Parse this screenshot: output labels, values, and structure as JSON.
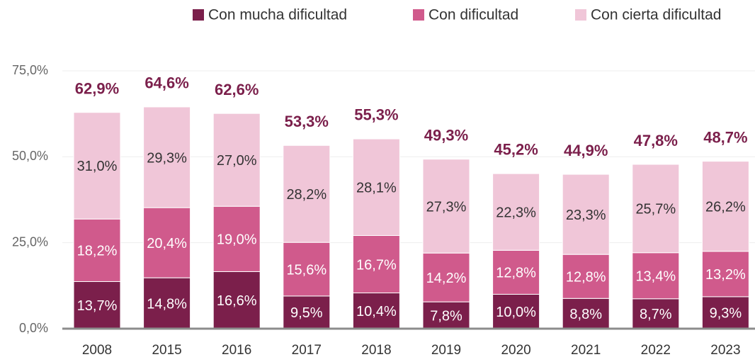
{
  "chart_data": {
    "type": "bar",
    "stacked": true,
    "categories": [
      "2008",
      "2015",
      "2016",
      "2017",
      "2018",
      "2019",
      "2020",
      "2021",
      "2022",
      "2023"
    ],
    "series": [
      {
        "name": "Con mucha dificultad",
        "color": "#7b1f4b",
        "values": [
          13.7,
          14.8,
          16.6,
          9.5,
          10.4,
          7.8,
          10.0,
          8.8,
          8.7,
          9.3
        ],
        "value_labels": [
          "13,7%",
          "14,8%",
          "16,6%",
          "9,5%",
          "10,4%",
          "7,8%",
          "10,0%",
          "8,8%",
          "8,7%",
          "9,3%"
        ]
      },
      {
        "name": "Con dificultad",
        "color": "#d05a8c",
        "values": [
          18.2,
          20.4,
          19.0,
          15.6,
          16.7,
          14.2,
          12.8,
          12.8,
          13.4,
          13.2
        ],
        "value_labels": [
          "18,2%",
          "20,4%",
          "19,0%",
          "15,6%",
          "16,7%",
          "14,2%",
          "12,8%",
          "12,8%",
          "13,4%",
          "13,2%"
        ]
      },
      {
        "name": "Con cierta dificultad",
        "color": "#f0c6d8",
        "values": [
          31.0,
          29.3,
          27.0,
          28.2,
          28.1,
          27.3,
          22.3,
          23.3,
          25.7,
          26.2
        ],
        "value_labels": [
          "31,0%",
          "29,3%",
          "27,0%",
          "28,2%",
          "28,1%",
          "27,3%",
          "22,3%",
          "23,3%",
          "25,7%",
          "26,2%"
        ]
      }
    ],
    "totals": {
      "values": [
        62.9,
        64.6,
        62.6,
        53.3,
        55.3,
        49.3,
        45.2,
        44.9,
        47.8,
        48.7
      ],
      "value_labels": [
        "62,9%",
        "64,6%",
        "62,6%",
        "53,3%",
        "55,3%",
        "49,3%",
        "45,2%",
        "44,9%",
        "47,8%",
        "48,7%"
      ]
    },
    "ylim": [
      0,
      75
    ],
    "yticks": [
      {
        "value": 0,
        "label": "0,0%"
      },
      {
        "value": 25,
        "label": "25,0%"
      },
      {
        "value": 50,
        "label": "50,0%"
      },
      {
        "value": 75,
        "label": "75,0%"
      }
    ],
    "grid": true,
    "legend": "top"
  }
}
